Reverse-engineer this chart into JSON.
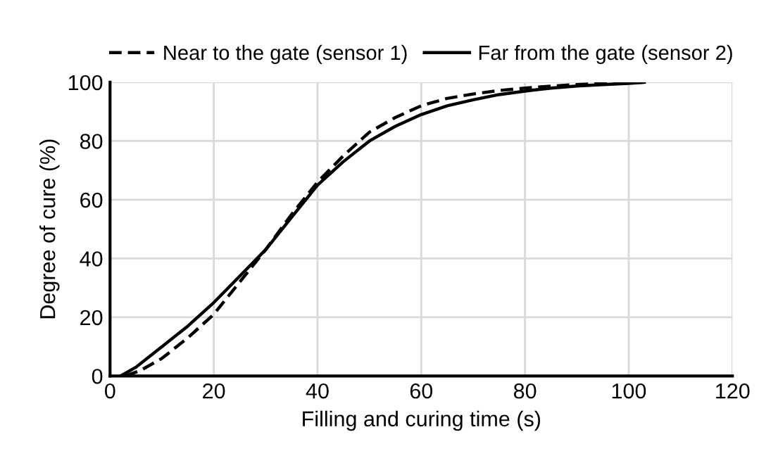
{
  "chart_data": {
    "type": "line",
    "xlabel": "Filling and curing time (s)",
    "ylabel": "Degree of cure (%)",
    "xlim": [
      0,
      120
    ],
    "xticks": [
      0,
      20,
      40,
      60,
      80,
      100,
      120
    ],
    "ylim": [
      0,
      100
    ],
    "yticks": [
      0,
      20,
      40,
      60,
      80,
      100
    ],
    "grid": true,
    "legend": "top",
    "marker": "none",
    "series": [
      {
        "name": "Near to the gate (sensor 1)",
        "color": "#000000",
        "line_style": "dashed",
        "x": [
          3,
          6,
          10,
          15,
          20,
          25,
          30,
          35,
          40,
          45,
          50,
          55,
          60,
          65,
          70,
          75,
          80,
          85,
          90,
          95,
          100,
          103
        ],
        "values": [
          0,
          2,
          6,
          13,
          21,
          32,
          43,
          55,
          66,
          75,
          83,
          88,
          92,
          94.5,
          96,
          97.2,
          98,
          98.7,
          99.2,
          99.6,
          99.8,
          100
        ]
      },
      {
        "name": "Far from the gate (sensor 2)",
        "color": "#000000",
        "line_style": "solid",
        "x": [
          2,
          5,
          10,
          15,
          20,
          25,
          30,
          35,
          40,
          45,
          50,
          55,
          60,
          65,
          70,
          75,
          80,
          85,
          90,
          95,
          100,
          103
        ],
        "values": [
          0,
          3,
          10,
          17,
          25,
          34,
          43,
          54,
          65,
          73,
          80,
          85,
          89,
          92,
          94,
          95.8,
          97,
          98,
          98.7,
          99.2,
          99.6,
          100
        ]
      }
    ]
  }
}
